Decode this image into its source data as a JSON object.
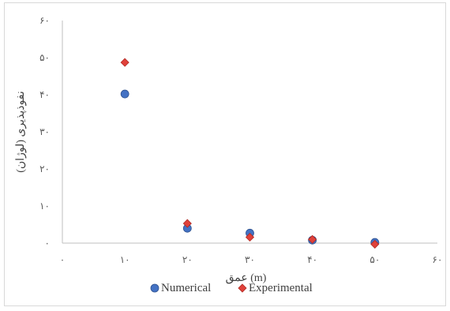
{
  "chart_data": {
    "type": "scatter",
    "xlabel": "عمق (m)",
    "ylabel": "نفوذپذیری (لوژان)",
    "xlim": [
      0,
      60
    ],
    "ylim": [
      0,
      60
    ],
    "x_ticks": [
      0,
      10,
      20,
      30,
      40,
      50,
      60
    ],
    "y_ticks": [
      0,
      10,
      20,
      30,
      40,
      50,
      60
    ],
    "x_tick_labels": [
      "۰",
      "۱۰",
      "۲۰",
      "۳۰",
      "۴۰",
      "۵۰",
      "۶۰"
    ],
    "y_tick_labels": [
      "۰",
      "۱۰",
      "۲۰",
      "۳۰",
      "۴۰",
      "۵۰",
      "۶۰"
    ],
    "grid": false,
    "legend_position": "bottom",
    "series": [
      {
        "name": "Numerical",
        "marker": "circle",
        "color": "#4472c4",
        "points": [
          [
            10,
            40.2
          ],
          [
            20,
            4.0
          ],
          [
            30,
            2.7
          ],
          [
            40,
            0.8
          ],
          [
            50,
            0.2
          ]
        ]
      },
      {
        "name": "Experimental",
        "marker": "diamond",
        "color": "#e0413a",
        "points": [
          [
            10,
            48.7
          ],
          [
            20,
            5.3
          ],
          [
            30,
            1.6
          ],
          [
            40,
            1.0
          ],
          [
            50,
            -0.3
          ]
        ]
      }
    ]
  }
}
